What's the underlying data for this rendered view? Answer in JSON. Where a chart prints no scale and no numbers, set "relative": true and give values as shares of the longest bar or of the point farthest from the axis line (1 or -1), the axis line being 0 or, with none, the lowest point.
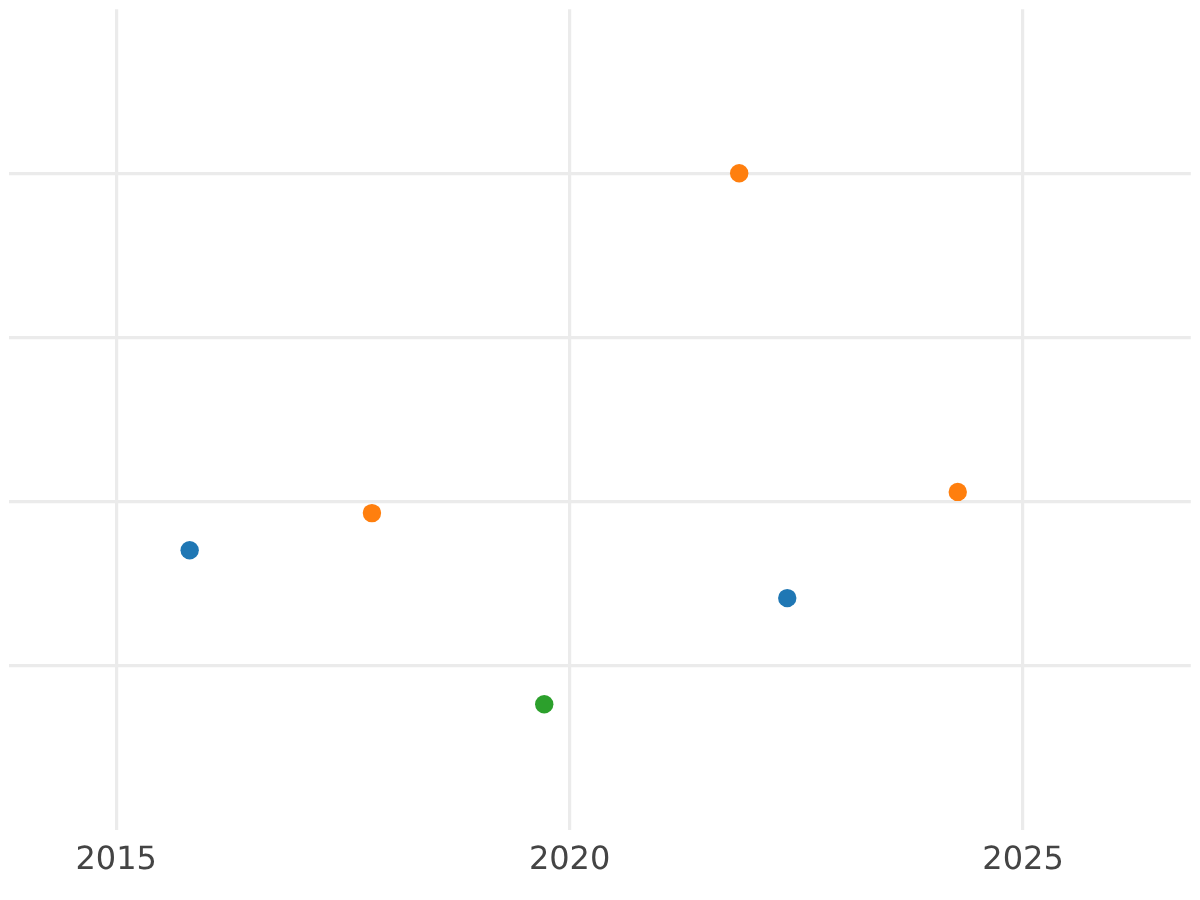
{
  "chart_data": {
    "type": "scatter",
    "relative": true,
    "marker": "circle",
    "grid": true,
    "legend": false,
    "xlim": [
      2013.82,
      2026.85
    ],
    "xticks": [
      2015,
      2020,
      2025
    ],
    "series": [
      {
        "color": "#1f77b4",
        "x": [
          2015.81,
          2022.4
        ],
        "values": [
          0.29,
          0.2
        ]
      },
      {
        "color": "#ff7f0e",
        "x": [
          2017.82,
          2021.87,
          2024.28
        ],
        "values": [
          0.36,
          1,
          0.4
        ]
      },
      {
        "color": "#2ca02c",
        "x": [
          2019.72
        ],
        "values": [
          0
        ]
      }
    ]
  }
}
